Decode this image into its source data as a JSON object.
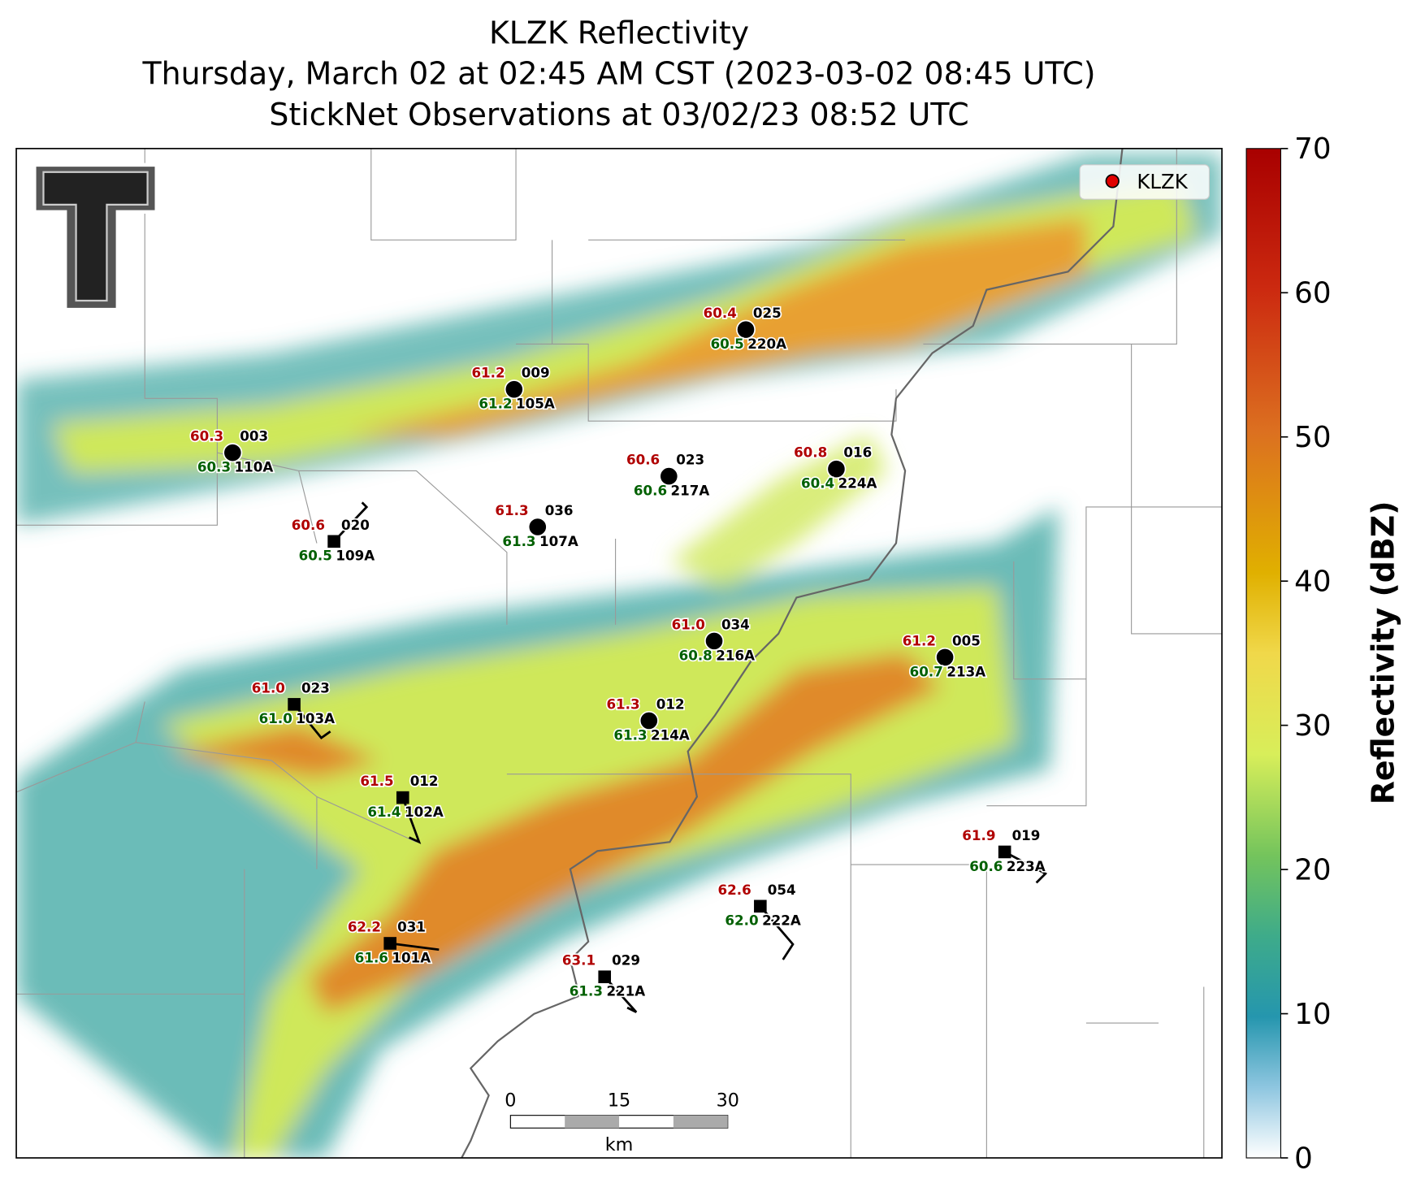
{
  "header": {
    "title_lines": [
      "KLZK Reflectivity",
      "Thursday, March 02 at 02:45 AM CST (2023-03-02 08:45 UTC)",
      "StickNet Observations at 03/02/23 08:52 UTC"
    ]
  },
  "legend": {
    "label": "KLZK",
    "color": "#e00000"
  },
  "colorbar": {
    "label": "Reflectivity (dBZ)",
    "lim": [
      0,
      70
    ],
    "ticks": [
      0,
      10,
      20,
      30,
      40,
      50,
      60,
      70
    ]
  },
  "scale_bar": {
    "ticks": [
      "0",
      "15",
      "30"
    ],
    "unit": "km"
  },
  "stations": [
    {
      "id": "003",
      "name": "110A",
      "temp": "60.3",
      "dew": "60.3",
      "marker": "circle"
    },
    {
      "id": "009",
      "name": "105A",
      "temp": "61.2",
      "dew": "61.2",
      "marker": "circle"
    },
    {
      "id": "025",
      "name": "220A",
      "temp": "60.4",
      "dew": "60.5",
      "marker": "circle"
    },
    {
      "id": "023",
      "name": "217A",
      "temp": "60.6",
      "dew": "60.6",
      "marker": "circle"
    },
    {
      "id": "016",
      "name": "224A",
      "temp": "60.8",
      "dew": "60.4",
      "marker": "circle"
    },
    {
      "id": "036",
      "name": "107A",
      "temp": "61.3",
      "dew": "61.3",
      "marker": "circle"
    },
    {
      "id": "020",
      "name": "109A",
      "temp": "60.6",
      "dew": "60.5",
      "marker": "square"
    },
    {
      "id": "034",
      "name": "216A",
      "temp": "61.0",
      "dew": "60.8",
      "marker": "circle"
    },
    {
      "id": "005",
      "name": "213A",
      "temp": "61.2",
      "dew": "60.7",
      "marker": "circle"
    },
    {
      "id": "023",
      "name": "103A",
      "temp": "61.0",
      "dew": "61.0",
      "marker": "square"
    },
    {
      "id": "012",
      "name": "214A",
      "temp": "61.3",
      "dew": "61.3",
      "marker": "circle"
    },
    {
      "id": "012",
      "name": "102A",
      "temp": "61.5",
      "dew": "61.4",
      "marker": "square"
    },
    {
      "id": "019",
      "name": "223A",
      "temp": "61.9",
      "dew": "60.6",
      "marker": "square"
    },
    {
      "id": "054",
      "name": "222A",
      "temp": "62.6",
      "dew": "62.0",
      "marker": "square"
    },
    {
      "id": "031",
      "name": "101A",
      "temp": "62.2",
      "dew": "61.6",
      "marker": "square"
    },
    {
      "id": "029",
      "name": "221A",
      "temp": "63.1",
      "dew": "61.3",
      "marker": "square"
    }
  ]
}
